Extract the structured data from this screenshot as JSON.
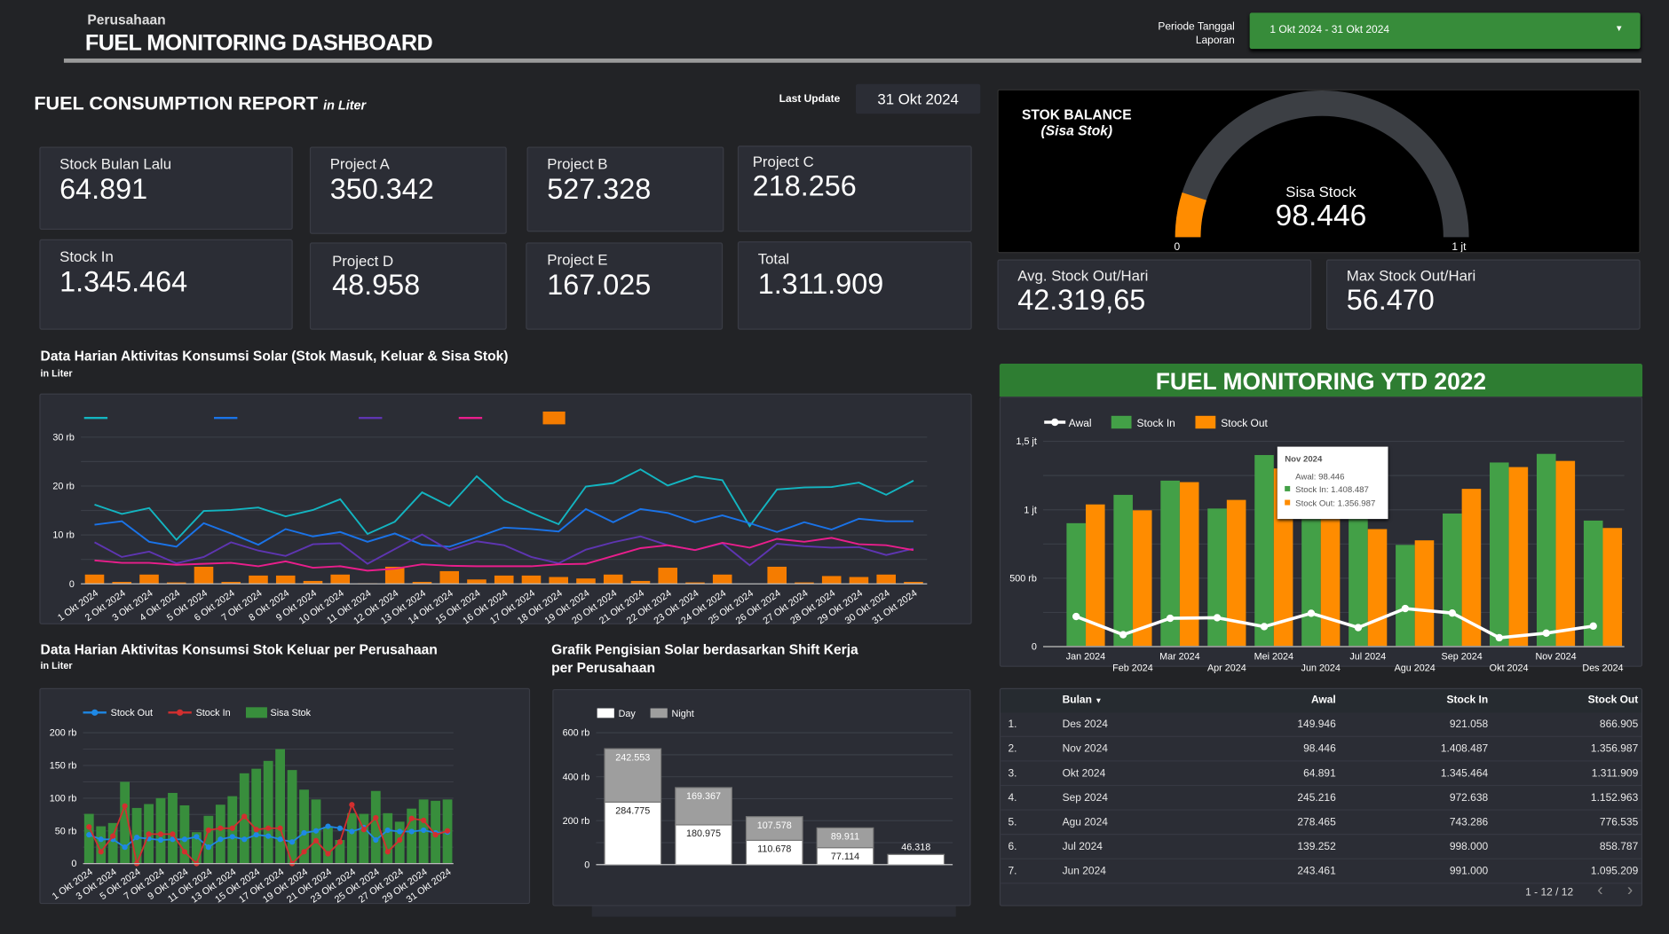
{
  "header": {
    "company": "Perusahaan",
    "title": "FUEL MONITORING DASHBOARD",
    "period_label_1": "Periode Tanggal",
    "period_label_2": "Laporan",
    "period_value": "1 Okt 2024 - 31 Okt 2024"
  },
  "report": {
    "title": "FUEL CONSUMPTION REPORT",
    "unit": "in Liter",
    "last_update_label": "Last Update",
    "last_update_value": "31 Okt 2024"
  },
  "kpis": [
    {
      "label": "Stock Bulan Lalu",
      "value": "64.891"
    },
    {
      "label": "Project A",
      "value": "350.342"
    },
    {
      "label": "Project B",
      "value": "527.328"
    },
    {
      "label": "Project C",
      "value": "218.256"
    },
    {
      "label": "Stock In",
      "value": "1.345.464"
    },
    {
      "label": "Project D",
      "value": "48.958"
    },
    {
      "label": "Project E",
      "value": "167.025"
    },
    {
      "label": "Total",
      "value": "1.311.909"
    }
  ],
  "gauge": {
    "title": "STOK BALANCE",
    "subtitle": "(Sisa Stok)",
    "label": "Sisa Stock",
    "value_text": "98.446",
    "value": 98446,
    "min": 0,
    "max": 1000000,
    "min_label": "0",
    "max_label": "1 jt",
    "fill_color": "#ff8c00",
    "track_color": "#3c3f44"
  },
  "stats": [
    {
      "label": "Avg. Stock Out/Hari",
      "value": "42.319,65"
    },
    {
      "label": "Max Stock Out/Hari",
      "value": "56.470"
    }
  ],
  "colors": {
    "green": "#378c3a",
    "orange": "#ff8c00",
    "panel": "#2b2d35"
  },
  "ytd": {
    "title": "FUEL MONITORING YTD 2022",
    "tooltip": {
      "title": "Nov 2024",
      "rows": [
        "Awal: 98.446",
        "Stock In: 1.408.487",
        "Stock Out: 1.356.987"
      ]
    }
  },
  "chart_data": [
    {
      "type": "line",
      "title": "Data Harian Aktivitas Konsumsi Solar (Stok Masuk, Keluar & Sisa Stok)",
      "subtitle": "in Liter",
      "categories": [
        "1 Okt 2024",
        "2 Okt 2024",
        "3 Okt 2024",
        "4 Okt 2024",
        "5 Okt 2024",
        "6 Okt 2024",
        "7 Okt 2024",
        "8 Okt 2024",
        "9 Okt 2024",
        "10 Okt 2024",
        "11 Okt 2024",
        "12 Okt 2024",
        "13 Okt 2024",
        "14 Okt 2024",
        "15 Okt 2024",
        "16 Okt 2024",
        "17 Okt 2024",
        "18 Okt 2024",
        "19 Okt 2024",
        "20 Okt 2024",
        "21 Okt 2024",
        "22 Okt 2024",
        "23 Okt 2024",
        "24 Okt 2024",
        "25 Okt 2024",
        "26 Okt 2024",
        "27 Okt 2024",
        "28 Okt 2024",
        "29 Okt 2024",
        "30 Okt 2024",
        "31 Okt 2024"
      ],
      "ylim": [
        0,
        30000
      ],
      "yticks": [
        {
          "v": 0,
          "label": "0"
        },
        {
          "v": 10000,
          "label": "10 rb"
        },
        {
          "v": 20000,
          "label": "20 rb"
        },
        {
          "v": 30000,
          "label": "30 rb"
        }
      ],
      "grid": true,
      "legend": "top",
      "series": [
        {
          "kind": "line",
          "color": "#13b5c1",
          "values": [
            16200,
            14300,
            15500,
            9000,
            14900,
            15100,
            15600,
            13800,
            15100,
            17300,
            10200,
            12700,
            18700,
            15900,
            22000,
            17100,
            14500,
            12200,
            19900,
            20600,
            23400,
            20100,
            22000,
            21200,
            11800,
            19300,
            19700,
            19800,
            20700,
            18200,
            21100
          ]
        },
        {
          "kind": "line",
          "color": "#1a73e8",
          "values": [
            12100,
            12800,
            8600,
            7600,
            12400,
            10300,
            8000,
            11200,
            9700,
            10600,
            8600,
            10300,
            8000,
            7600,
            9500,
            11500,
            11200,
            10700,
            15300,
            12600,
            15300,
            14500,
            12600,
            14000,
            12400,
            10600,
            12600,
            11100,
            13300,
            12800,
            12800
          ]
        },
        {
          "kind": "line",
          "color": "#5e35b1",
          "values": [
            8500,
            5500,
            6600,
            4200,
            5500,
            8500,
            6800,
            5700,
            8100,
            8300,
            4100,
            7100,
            10100,
            6900,
            8700,
            7900,
            5500,
            4200,
            7000,
            8500,
            9700,
            7900,
            6900,
            8300,
            3800,
            8200,
            7700,
            7400,
            7500,
            5900,
            7200
          ]
        },
        {
          "kind": "line",
          "color": "#e91e8c",
          "values": [
            4800,
            4300,
            4300,
            3900,
            4100,
            4300,
            3600,
            4600,
            3300,
            3600,
            2700,
            3100,
            4000,
            3700,
            3600,
            3600,
            3600,
            4000,
            4100,
            5700,
            7300,
            7900,
            6900,
            8400,
            7400,
            9200,
            8600,
            9400,
            8100,
            7900,
            6900
          ]
        },
        {
          "kind": "bar",
          "color": "#f57c00",
          "values": [
            1900,
            400,
            1900,
            300,
            3500,
            400,
            1700,
            1700,
            600,
            1900,
            100,
            3500,
            400,
            2600,
            900,
            1700,
            1700,
            1400,
            1100,
            1900,
            600,
            3300,
            300,
            1900,
            0,
            3500,
            300,
            1600,
            1400,
            1900,
            400
          ]
        }
      ]
    },
    {
      "type": "bar",
      "title": "Data Harian Aktivitas Konsumsi Stok Keluar per Perusahaan",
      "subtitle": "in Liter",
      "categories": [
        "1 Okt 2024",
        "2 Okt 2024",
        "3 Okt 2024",
        "4 Okt 2024",
        "5 Okt 2024",
        "6 Okt 2024",
        "7 Okt 2024",
        "8 Okt 2024",
        "9 Okt 2024",
        "10 Okt 2024",
        "11 Okt 2024",
        "12 Okt 2024",
        "13 Okt 2024",
        "14 Okt 2024",
        "15 Okt 2024",
        "16 Okt 2024",
        "17 Okt 2024",
        "18 Okt 2024",
        "19 Okt 2024",
        "20 Okt 2024",
        "21 Okt 2024",
        "22 Okt 2024",
        "23 Okt 2024",
        "24 Okt 2024",
        "25 Okt 2024",
        "26 Okt 2024",
        "27 Okt 2024",
        "28 Okt 2024",
        "29 Okt 2024",
        "30 Okt 2024",
        "31 Okt 2024"
      ],
      "ylim": [
        0,
        200000
      ],
      "yticks": [
        {
          "v": 0,
          "label": "0"
        },
        {
          "v": 50000,
          "label": "50 rb"
        },
        {
          "v": 100000,
          "label": "100 rb"
        },
        {
          "v": 150000,
          "label": "150 rb"
        },
        {
          "v": 200000,
          "label": "200 rb"
        }
      ],
      "grid": true,
      "legend": "top-left",
      "series": [
        {
          "name": "Stock Out",
          "kind": "line",
          "color": "#1e88e5",
          "values": [
            44000,
            37000,
            37000,
            25000,
            40000,
            38000,
            36000,
            37000,
            37000,
            41000,
            25000,
            37000,
            41000,
            37000,
            44000,
            42000,
            37000,
            33000,
            47000,
            50000,
            57000,
            54000,
            49000,
            55000,
            36000,
            51000,
            49000,
            49000,
            51000,
            47000,
            48000
          ]
        },
        {
          "name": "Stock In",
          "kind": "line",
          "color": "#d32f2f",
          "values": [
            56000,
            18000,
            42000,
            88000,
            0,
            45000,
            45000,
            45000,
            18000,
            0,
            51000,
            54000,
            54000,
            72000,
            52000,
            54000,
            54000,
            0,
            18000,
            35000,
            15000,
            33000,
            90000,
            52000,
            70000,
            18000,
            36000,
            69000,
            66000,
            44000,
            50000
          ]
        },
        {
          "name": "Sisa Stok",
          "kind": "bar",
          "color": "#388e3c",
          "values": [
            76000,
            57000,
            62000,
            125000,
            85000,
            91000,
            100000,
            108000,
            89000,
            48000,
            73000,
            90000,
            103000,
            138000,
            145000,
            157000,
            175000,
            143000,
            113000,
            98000,
            56000,
            36000,
            77000,
            76000,
            111000,
            77000,
            64000,
            84000,
            98000,
            96000,
            98000
          ]
        }
      ]
    },
    {
      "type": "bar",
      "stacked": true,
      "title": "Grafik Pengisian Solar berdasarkan Shift Kerja",
      "title2": "per Perusahaan",
      "ylim": [
        0,
        600000
      ],
      "yticks": [
        {
          "v": 0,
          "label": "0"
        },
        {
          "v": 200000,
          "label": "200 rb"
        },
        {
          "v": 400000,
          "label": "400 rb"
        },
        {
          "v": 600000,
          "label": "600 rb"
        }
      ],
      "grid": true,
      "legend": "top-left",
      "series": [
        {
          "name": "Day",
          "color": "#ffffff",
          "values": [
            284775,
            180975,
            110678,
            77114,
            46318
          ],
          "labels": [
            "284.775",
            "180.975",
            "110.678",
            "77.114",
            "46.318"
          ]
        },
        {
          "name": "Night",
          "color": "#9e9e9e",
          "values": [
            242553,
            169367,
            107578,
            89911,
            0
          ],
          "labels": [
            "242.553",
            "169.367",
            "107.578",
            "89.911",
            ""
          ]
        }
      ]
    },
    {
      "type": "bar",
      "title": "FUEL MONITORING YTD 2022",
      "categories": [
        "Jan 2024",
        "Feb 2024",
        "Mar 2024",
        "Apr 2024",
        "Mei 2024",
        "Jun 2024",
        "Jul 2024",
        "Agu 2024",
        "Sep 2024",
        "Okt 2024",
        "Nov 2024",
        "Des 2024"
      ],
      "ylim": [
        0,
        1500000
      ],
      "yticks": [
        {
          "v": 0,
          "label": "0"
        },
        {
          "v": 500000,
          "label": "500 rb"
        },
        {
          "v": 1000000,
          "label": "1 jt"
        },
        {
          "v": 1500000,
          "label": "1,5 jt"
        }
      ],
      "grid": true,
      "legend": "top-left",
      "series": [
        {
          "name": "Awal",
          "kind": "line",
          "color": "#ffffff",
          "values": [
            220000,
            87000,
            207000,
            211000,
            146000,
            243461,
            139252,
            278465,
            245216,
            64891,
            98446,
            149946
          ]
        },
        {
          "name": "Stock In",
          "kind": "bar",
          "color": "#43a047",
          "values": [
            902000,
            1109000,
            1213000,
            1009000,
            1400000,
            991000,
            998000,
            743286,
            972638,
            1345464,
            1408487,
            921058
          ]
        },
        {
          "name": "Stock Out",
          "kind": "bar",
          "color": "#ff8c00",
          "values": [
            1039000,
            996000,
            1202000,
            1072000,
            1302000,
            1095209,
            858787,
            776535,
            1152963,
            1311909,
            1356987,
            866905
          ]
        }
      ]
    }
  ],
  "table": {
    "headers": [
      "Bulan",
      "Awal",
      "Stock In",
      "Stock Out"
    ],
    "rows": [
      {
        "no": "1.",
        "bulan": "Des 2024",
        "awal": "149.946",
        "in": "921.058",
        "out": "866.905"
      },
      {
        "no": "2.",
        "bulan": "Nov 2024",
        "awal": "98.446",
        "in": "1.408.487",
        "out": "1.356.987"
      },
      {
        "no": "3.",
        "bulan": "Okt 2024",
        "awal": "64.891",
        "in": "1.345.464",
        "out": "1.311.909"
      },
      {
        "no": "4.",
        "bulan": "Sep 2024",
        "awal": "245.216",
        "in": "972.638",
        "out": "1.152.963"
      },
      {
        "no": "5.",
        "bulan": "Agu 2024",
        "awal": "278.465",
        "in": "743.286",
        "out": "776.535"
      },
      {
        "no": "6.",
        "bulan": "Jul 2024",
        "awal": "139.252",
        "in": "998.000",
        "out": "858.787"
      },
      {
        "no": "7.",
        "bulan": "Jun 2024",
        "awal": "243.461",
        "in": "991.000",
        "out": "1.095.209"
      }
    ],
    "pagination": "1 - 12 / 12"
  }
}
